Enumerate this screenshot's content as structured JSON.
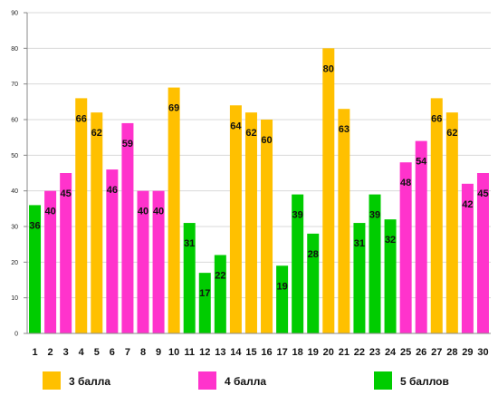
{
  "chart_data": {
    "type": "bar",
    "categories": [
      "1",
      "2",
      "3",
      "4",
      "5",
      "6",
      "7",
      "8",
      "9",
      "10",
      "11",
      "12",
      "13",
      "14",
      "15",
      "16",
      "17",
      "18",
      "19",
      "20",
      "21",
      "22",
      "23",
      "24",
      "25",
      "26",
      "27",
      "28",
      "29",
      "30"
    ],
    "values": [
      36,
      40,
      45,
      66,
      62,
      46,
      59,
      40,
      40,
      69,
      31,
      17,
      22,
      64,
      62,
      60,
      19,
      39,
      28,
      80,
      63,
      31,
      39,
      32,
      48,
      54,
      66,
      62,
      42,
      45
    ],
    "groups": [
      "g5",
      "g4",
      "g4",
      "g3",
      "g3",
      "g4",
      "g4",
      "g4",
      "g4",
      "g3",
      "g5",
      "g5",
      "g5",
      "g3",
      "g3",
      "g3",
      "g5",
      "g5",
      "g5",
      "g3",
      "g3",
      "g5",
      "g5",
      "g5",
      "g4",
      "g4",
      "g3",
      "g3",
      "g4",
      "g4"
    ],
    "ylim": [
      0,
      90
    ],
    "yticks": [
      0,
      10,
      20,
      30,
      40,
      50,
      60,
      70,
      80,
      90
    ],
    "grid": true,
    "legend": {
      "placement": "bottom",
      "items": [
        {
          "key": "g3",
          "label": "3 балла",
          "color": "#FFC000"
        },
        {
          "key": "g4",
          "label": "4 балла",
          "color": "#FF33CC"
        },
        {
          "key": "g5",
          "label": "5 баллов",
          "color": "#00CC00"
        }
      ]
    }
  }
}
